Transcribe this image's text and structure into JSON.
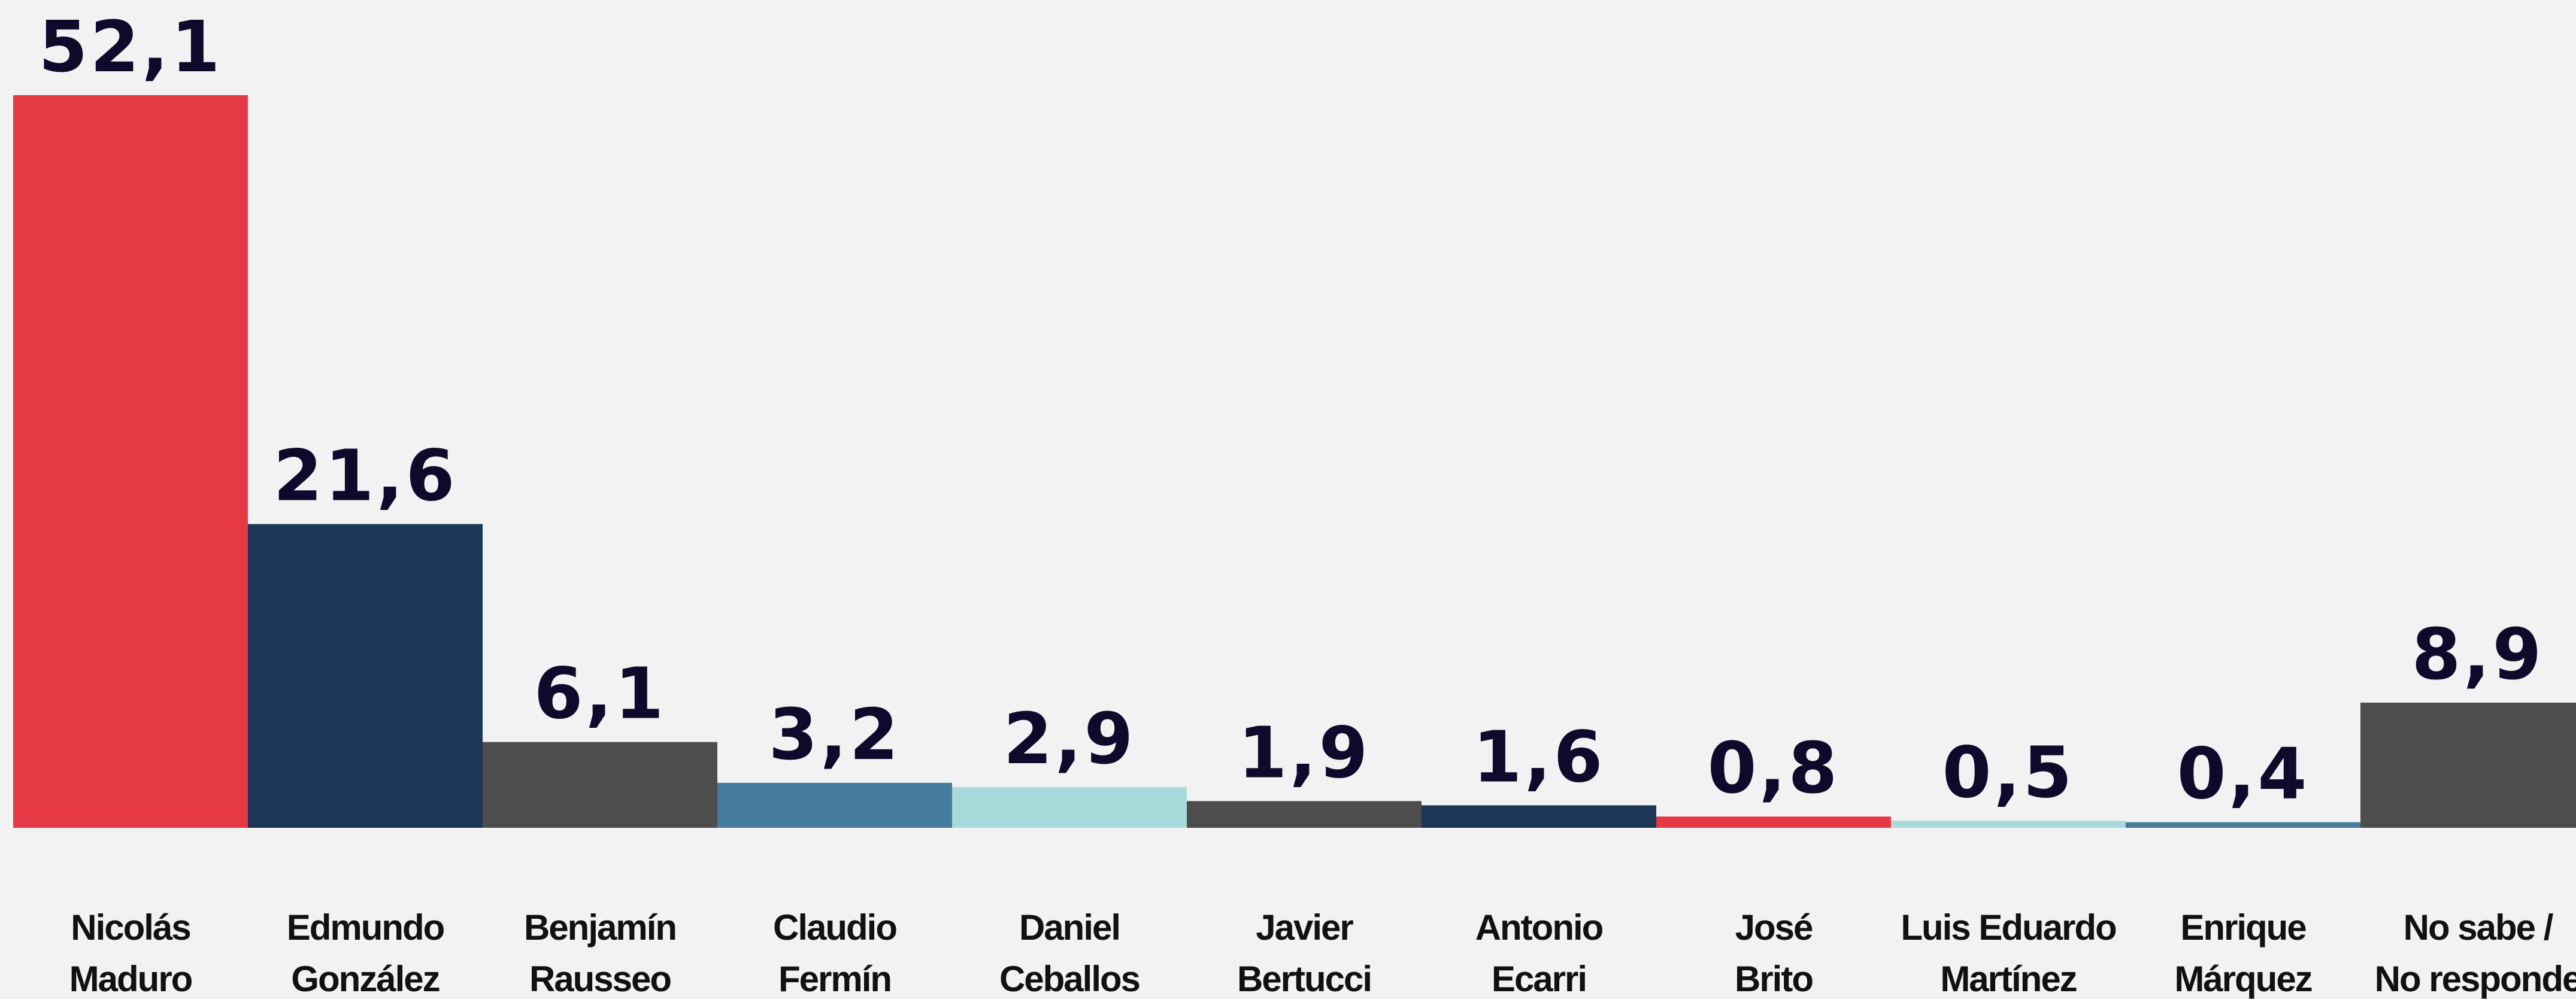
{
  "chart_data": {
    "type": "bar",
    "categories": [
      [
        "Nicolás",
        "Maduro"
      ],
      [
        "Edmundo",
        "González"
      ],
      [
        "Benjamín",
        "Rausseo"
      ],
      [
        "Claudio",
        "Fermín"
      ],
      [
        "Daniel",
        "Ceballos"
      ],
      [
        "Javier",
        "Bertucci"
      ],
      [
        "Antonio",
        "Ecarri"
      ],
      [
        "José",
        "Brito"
      ],
      [
        "Luis Eduardo",
        "Martínez"
      ],
      [
        "Enrique",
        "Márquez"
      ],
      [
        "No sabe /",
        "No responde"
      ]
    ],
    "values": [
      52.1,
      21.6,
      6.1,
      3.2,
      2.9,
      1.9,
      1.6,
      0.8,
      0.5,
      0.4,
      8.9
    ],
    "value_labels": [
      "52,1",
      "21,6",
      "6,1",
      "3,2",
      "2,9",
      "1,9",
      "1,6",
      "0,8",
      "0,5",
      "0,4",
      "8,9"
    ],
    "colors": [
      "#e63946",
      "#1d3557",
      "#4d4d4d",
      "#457b9d",
      "#a8dadc",
      "#4d4d4d",
      "#1d3557",
      "#e63946",
      "#a8dadc",
      "#457b9d",
      "#4d4d4d"
    ]
  }
}
